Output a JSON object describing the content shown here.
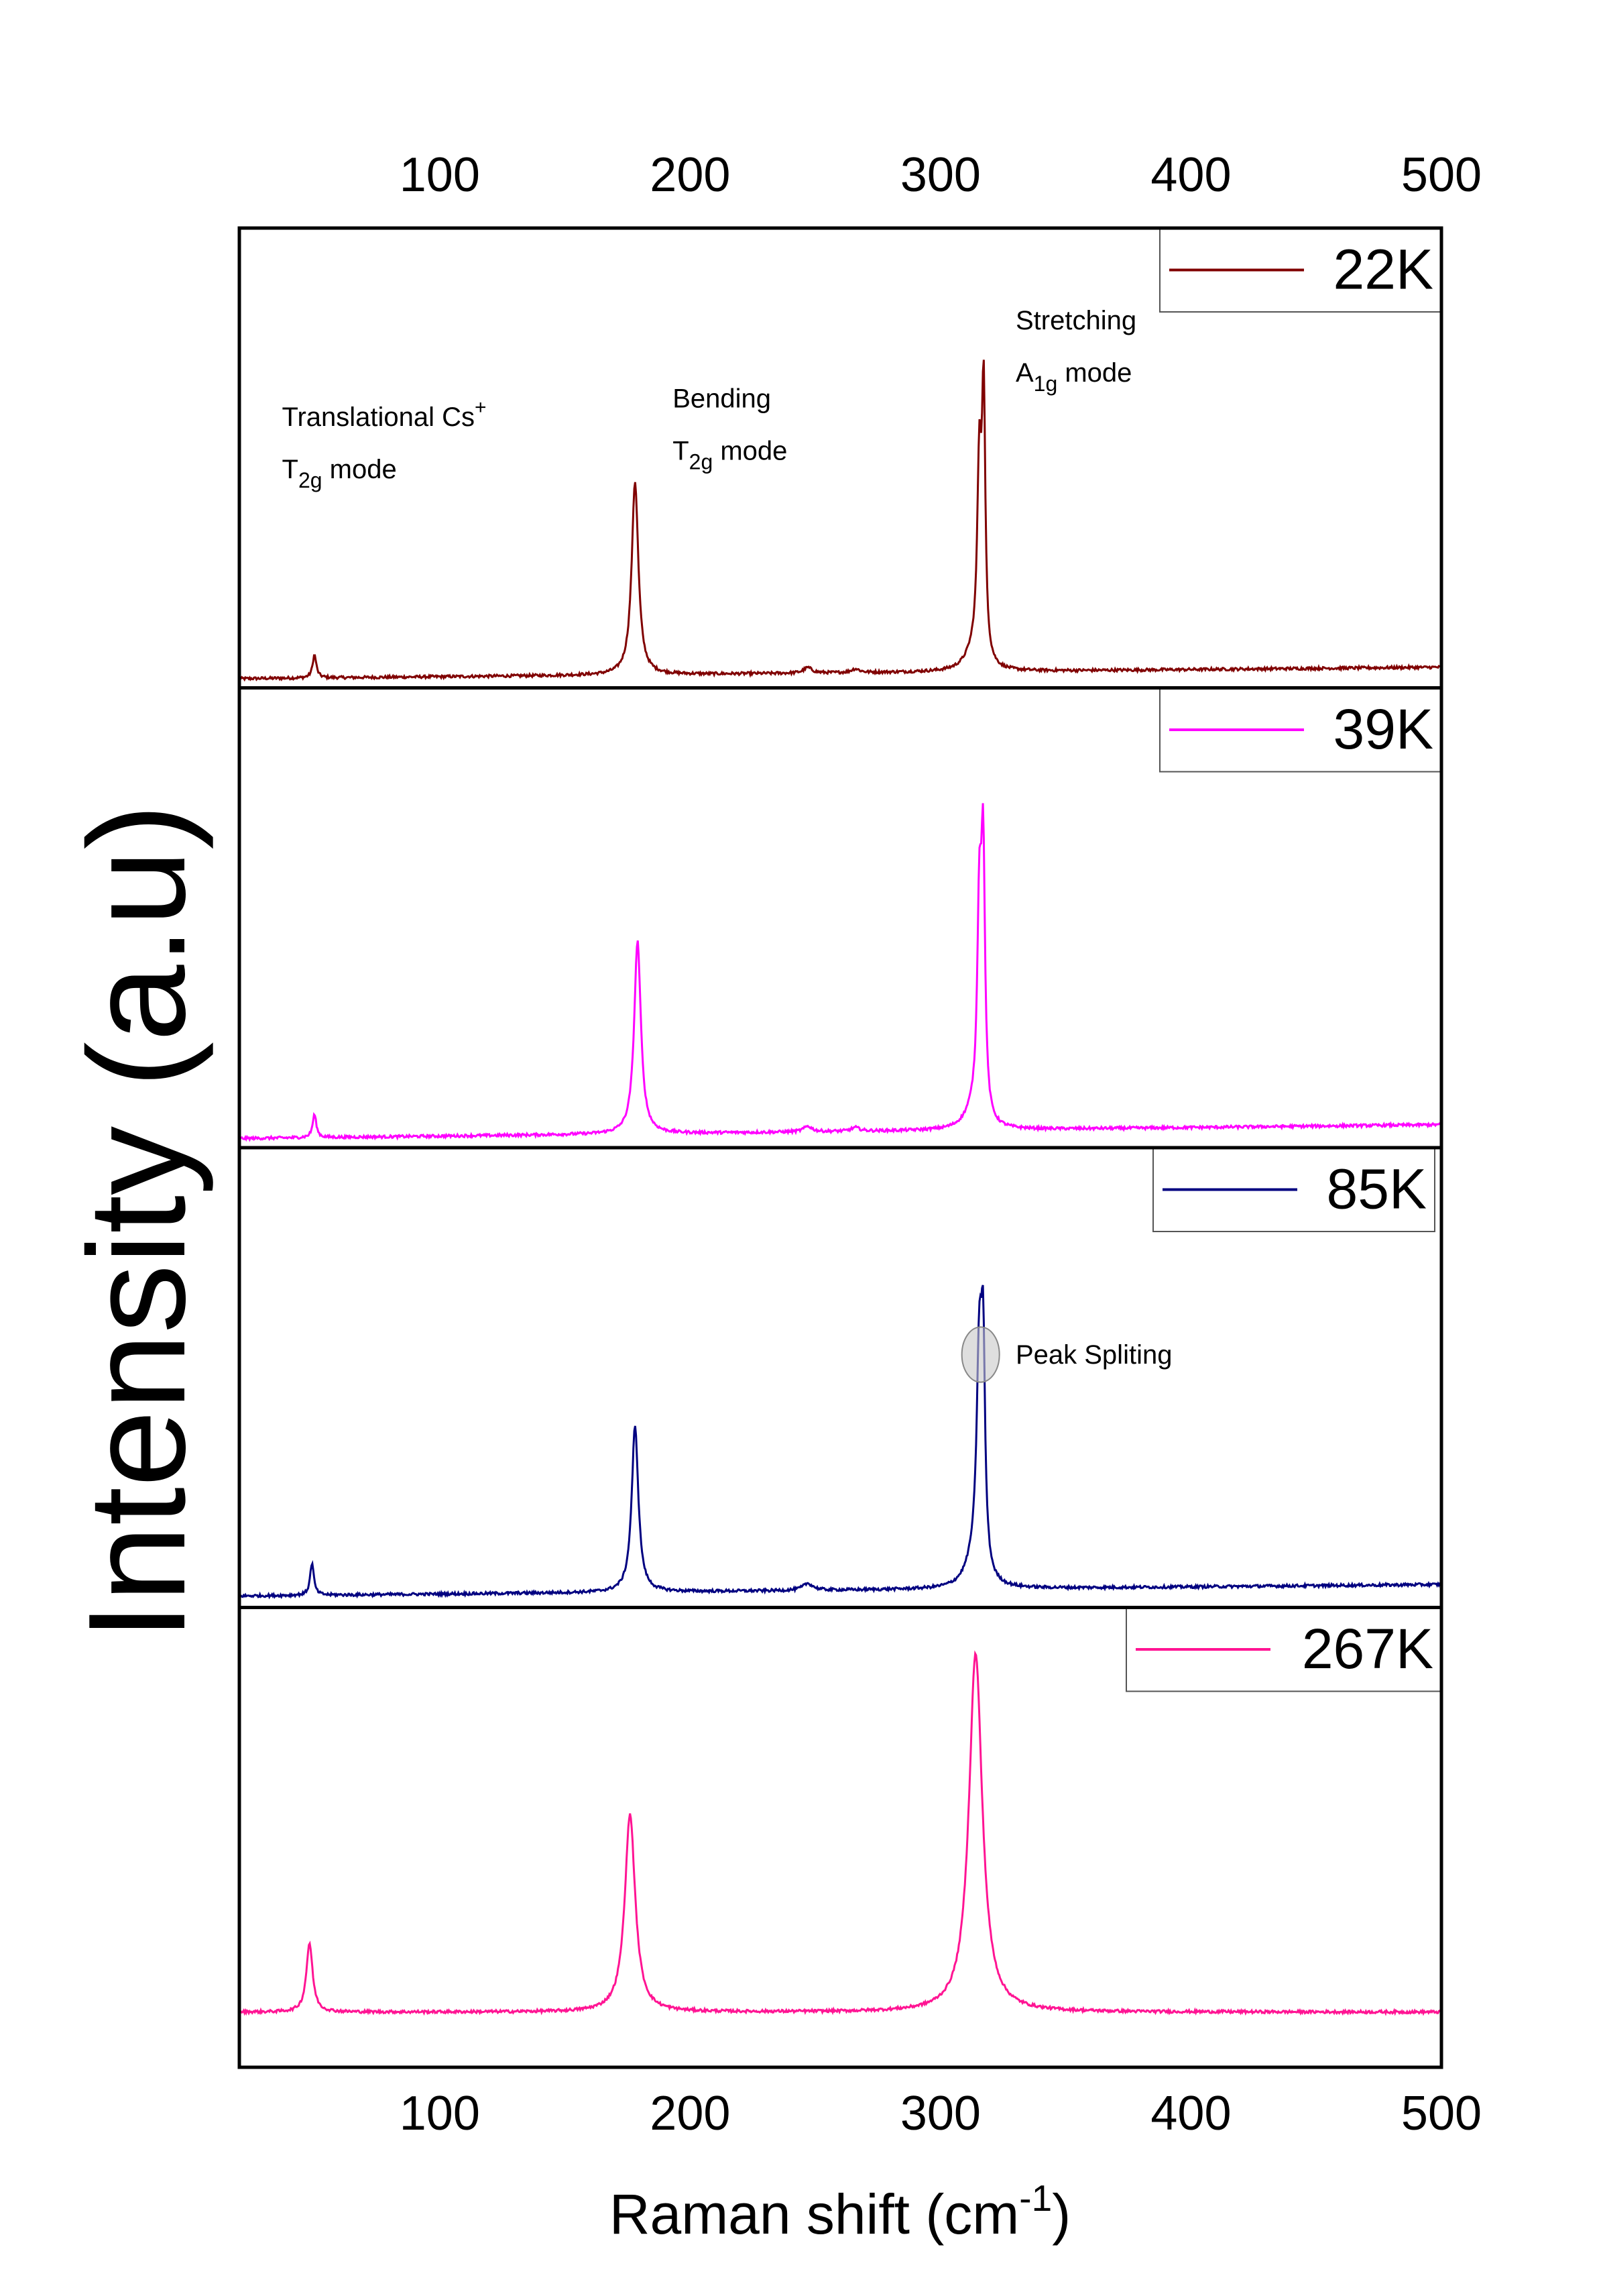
{
  "chart_data": {
    "type": "line",
    "xlabel": "Raman shift (cm",
    "xlabel_sup": "-1",
    "xlabel_end": ")",
    "ylabel": "Intensity (a.u)",
    "xlim": [
      20,
      500
    ],
    "x_ticks": [
      100,
      200,
      300,
      400,
      500
    ],
    "x_tick_labels": [
      "100",
      "200",
      "300",
      "400",
      "500"
    ],
    "legend_placement": "top-right of each panel",
    "y_ticks_shown": false,
    "grid": false,
    "panels": [
      {
        "name": "22K",
        "color": "#800000",
        "baseline": [
          0.02,
          0.045
        ],
        "peaks": [
          {
            "x": 50,
            "height": 0.05,
            "width": 0.9
          },
          {
            "x": 178,
            "height": 0.42,
            "width": 1.6
          },
          {
            "x": 247,
            "height": 0.012,
            "width": 2.0
          },
          {
            "x": 266,
            "height": 0.008,
            "width": 2.0
          },
          {
            "x": 313,
            "height": 0.035,
            "width": 4.0
          },
          {
            "x": 315.5,
            "height": 0.42,
            "width": 1.0
          },
          {
            "x": 317.2,
            "height": 0.56,
            "width": 0.8
          }
        ],
        "annotations": [
          {
            "text": "Translational Cs",
            "sup": "+",
            "line2": "T",
            "sub": "2g",
            "line2_end": " mode",
            "x": 37,
            "y": 0.57
          },
          {
            "text": "Bending",
            "sup": "",
            "line2": "T",
            "sub": "2g",
            "line2_end": " mode",
            "x": 193,
            "y": 0.61
          },
          {
            "text": "Stretching",
            "sup": "",
            "line2": "A",
            "sub": "1g",
            "line2_end": " mode",
            "x": 330,
            "y": 0.78
          }
        ]
      },
      {
        "name": "39K",
        "color": "#ff00ff",
        "baseline": [
          0.02,
          0.05
        ],
        "peaks": [
          {
            "x": 50,
            "height": 0.05,
            "width": 0.9
          },
          {
            "x": 179,
            "height": 0.42,
            "width": 1.6
          },
          {
            "x": 247,
            "height": 0.012,
            "width": 2.0
          },
          {
            "x": 266,
            "height": 0.008,
            "width": 2.0
          },
          {
            "x": 313,
            "height": 0.035,
            "width": 4.0
          },
          {
            "x": 315.5,
            "height": 0.44,
            "width": 1.0
          },
          {
            "x": 317,
            "height": 0.55,
            "width": 0.9
          }
        ],
        "annotations": []
      },
      {
        "name": "85K",
        "color": "#000080",
        "baseline": [
          0.025,
          0.05
        ],
        "peaks": [
          {
            "x": 49,
            "height": 0.07,
            "width": 0.9
          },
          {
            "x": 178,
            "height": 0.36,
            "width": 1.6
          },
          {
            "x": 247,
            "height": 0.015,
            "width": 2.5
          },
          {
            "x": 313,
            "height": 0.045,
            "width": 4.0
          },
          {
            "x": 315.5,
            "height": 0.48,
            "width": 1.3
          },
          {
            "x": 317,
            "height": 0.42,
            "width": 0.9
          }
        ],
        "annotations": [
          {
            "text": "Peak Spliting",
            "sup": "",
            "line2": "",
            "sub": "",
            "line2_end": "",
            "x": 330,
            "y": 0.53
          }
        ],
        "ellipse": {
          "x": 316,
          "y": 0.55,
          "rx": 7.5,
          "ry": 0.06
        }
      },
      {
        "name": "267K",
        "color": "#ff1493",
        "baseline": [
          0.12,
          0.12
        ],
        "peaks": [
          {
            "x": 48,
            "height": 0.15,
            "width": 1.5
          },
          {
            "x": 176,
            "height": 0.43,
            "width": 2.5
          },
          {
            "x": 314,
            "height": 0.78,
            "width": 3.2
          }
        ],
        "annotations": []
      }
    ]
  }
}
